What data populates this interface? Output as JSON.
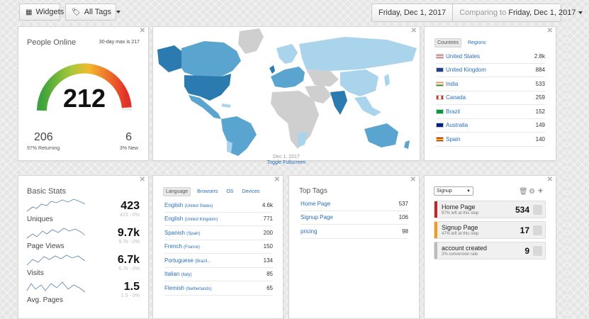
{
  "toolbar": {
    "widgets_label": "Widgets",
    "tags_label": "All Tags",
    "date_label": "Friday, Dec 1, 2017",
    "comparing_prefix": "Comparing to",
    "comparing_date": "Friday, Dec 1, 2017"
  },
  "people_online": {
    "title": "People Online",
    "max_note": "30-day max is 217",
    "value": "212",
    "gauge_fraction": 0.977,
    "returning_count": "206",
    "returning_label": "97% Returning",
    "new_count": "6",
    "new_label": "3% New"
  },
  "map": {
    "caption": "Dec 1, 2017",
    "fullscreen_link": "Toggle Fullscreen"
  },
  "countries": {
    "tabs": [
      "Countries",
      "Regions"
    ],
    "rows": [
      {
        "name": "United States",
        "value": "2.8k",
        "flag": "flag-us-icon"
      },
      {
        "name": "United Kingdom",
        "value": "884",
        "flag": "flag-uk-icon"
      },
      {
        "name": "India",
        "value": "533",
        "flag": "flag-in-icon"
      },
      {
        "name": "Canada",
        "value": "259",
        "flag": "flag-ca-icon"
      },
      {
        "name": "Brazil",
        "value": "152",
        "flag": "flag-br-icon"
      },
      {
        "name": "Australia",
        "value": "149",
        "flag": "flag-au-icon"
      },
      {
        "name": "Spain",
        "value": "140",
        "flag": "flag-es-icon"
      }
    ]
  },
  "basic_stats": {
    "title": "Basic Stats",
    "items": [
      {
        "label": "Uniques",
        "value": "423",
        "sub": "423 - 0%"
      },
      {
        "label": "Page Views",
        "value": "9.7k",
        "sub": "9.7k - 0%"
      },
      {
        "label": "Visits",
        "value": "6.7k",
        "sub": "6.7k - 0%"
      },
      {
        "label": "Avg. Pages",
        "value": "1.5",
        "sub": "1.5 - 0%"
      }
    ]
  },
  "languages": {
    "tabs": [
      "Language",
      "Browsers",
      "OS",
      "Devices"
    ],
    "rows": [
      {
        "name": "English",
        "sub": "(United States)",
        "value": "4.6k"
      },
      {
        "name": "English",
        "sub": "(United Kingdom)",
        "value": "771"
      },
      {
        "name": "Spanish",
        "sub": "(Spain)",
        "value": "200"
      },
      {
        "name": "French",
        "sub": "(France)",
        "value": "150"
      },
      {
        "name": "Portuguese",
        "sub": "(Brazil...",
        "value": "134"
      },
      {
        "name": "Italian",
        "sub": "(Italy)",
        "value": "85"
      },
      {
        "name": "Flemish",
        "sub": "(Netherlands)",
        "value": "65"
      }
    ]
  },
  "top_tags": {
    "title": "Top Tags",
    "rows": [
      {
        "name": "Home Page",
        "value": "537"
      },
      {
        "name": "Signup Page",
        "value": "106"
      },
      {
        "name": "pricing",
        "value": "98"
      }
    ]
  },
  "funnel": {
    "select_value": "Signup",
    "steps": [
      {
        "name": "Home Page",
        "sub": "97% left at this step",
        "value": "534",
        "color": "#c0262c"
      },
      {
        "name": "Signup Page",
        "sub": "47% left at this step",
        "value": "17",
        "color": "#f39a1e"
      },
      {
        "name": "account created",
        "sub": "2% conversion rate",
        "value": "9",
        "color": "#bbbbbb"
      }
    ]
  },
  "colors": {
    "map_dark": "#2b7bb0",
    "map_mid": "#5aa5cf",
    "map_light": "#a9d4ec",
    "map_none": "#cfcfcf",
    "link": "#2a6fb8"
  }
}
